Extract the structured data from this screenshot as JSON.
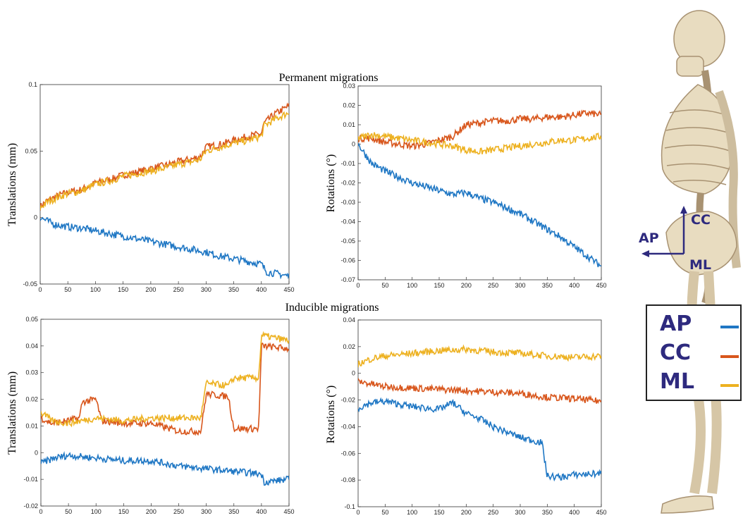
{
  "section_titles": {
    "top": "Permanent migrations",
    "bottom": "Inducible migrations"
  },
  "colors": {
    "AP": "#1f77c4",
    "CC": "#d8561c",
    "ML": "#edb120",
    "legend_text": "#2e2a7e"
  },
  "legend": [
    {
      "label": "AP",
      "color": "#1f77c4"
    },
    {
      "label": "CC",
      "color": "#d8561c"
    },
    {
      "label": "ML",
      "color": "#edb120"
    }
  ],
  "anatomy_axes": {
    "ap": "AP",
    "cc": "CC",
    "ml": "ML"
  },
  "chart_data": [
    {
      "type": "line",
      "ylabel": "Translations (mm)",
      "xlim": [
        0,
        450
      ],
      "ylim": [
        -0.05,
        0.1
      ],
      "xticks": [
        "0",
        "50",
        "100",
        "150",
        "200",
        "250",
        "300",
        "350",
        "400",
        "450"
      ],
      "yticks": [
        "-0.05",
        "0",
        "0.05",
        "0.1"
      ],
      "series": [
        {
          "name": "CC",
          "x": [
            0,
            10,
            30,
            50,
            75,
            100,
            130,
            150,
            175,
            200,
            225,
            250,
            275,
            290,
            300,
            325,
            350,
            375,
            400,
            405,
            425,
            450
          ],
          "y": [
            0.008,
            0.012,
            0.016,
            0.019,
            0.021,
            0.026,
            0.029,
            0.032,
            0.034,
            0.037,
            0.039,
            0.042,
            0.044,
            0.046,
            0.053,
            0.055,
            0.058,
            0.061,
            0.063,
            0.071,
            0.078,
            0.084
          ]
        },
        {
          "name": "ML",
          "x": [
            0,
            10,
            30,
            50,
            75,
            100,
            130,
            150,
            175,
            200,
            225,
            250,
            275,
            290,
            300,
            325,
            350,
            375,
            400,
            405,
            425,
            450
          ],
          "y": [
            0.007,
            0.011,
            0.015,
            0.018,
            0.02,
            0.025,
            0.028,
            0.031,
            0.033,
            0.035,
            0.037,
            0.04,
            0.042,
            0.044,
            0.05,
            0.053,
            0.056,
            0.058,
            0.061,
            0.069,
            0.074,
            0.079
          ]
        },
        {
          "name": "AP",
          "x": [
            0,
            25,
            50,
            75,
            100,
            125,
            150,
            175,
            200,
            225,
            250,
            275,
            300,
            325,
            350,
            375,
            400,
            410,
            425,
            450
          ],
          "y": [
            0,
            -0.005,
            -0.007,
            -0.008,
            -0.01,
            -0.012,
            -0.014,
            -0.016,
            -0.018,
            -0.02,
            -0.022,
            -0.024,
            -0.026,
            -0.029,
            -0.031,
            -0.033,
            -0.035,
            -0.041,
            -0.042,
            -0.044
          ]
        }
      ]
    },
    {
      "type": "line",
      "ylabel": "Rotations (°)",
      "xlim": [
        0,
        450
      ],
      "ylim": [
        -0.07,
        0.03
      ],
      "xticks": [
        "0",
        "50",
        "100",
        "150",
        "200",
        "250",
        "300",
        "350",
        "400",
        "450"
      ],
      "yticks": [
        "-0.07",
        "-0.06",
        "-0.05",
        "-0.04",
        "-0.03",
        "-0.02",
        "-0.01",
        "0",
        "0.01",
        "0.02",
        "0.03"
      ],
      "series": [
        {
          "name": "CC",
          "x": [
            0,
            25,
            50,
            75,
            100,
            125,
            150,
            175,
            200,
            225,
            250,
            275,
            300,
            325,
            350,
            375,
            400,
            425,
            450
          ],
          "y": [
            0.003,
            0.003,
            0.001,
            0.0,
            -0.001,
            0.0,
            0.002,
            0.004,
            0.01,
            0.011,
            0.012,
            0.012,
            0.013,
            0.013,
            0.014,
            0.014,
            0.015,
            0.016,
            0.015
          ]
        },
        {
          "name": "ML",
          "x": [
            0,
            25,
            50,
            75,
            100,
            125,
            150,
            175,
            200,
            225,
            250,
            275,
            300,
            325,
            350,
            375,
            400,
            425,
            450
          ],
          "y": [
            0.003,
            0.005,
            0.004,
            0.003,
            0.002,
            0.001,
            0.0,
            -0.001,
            -0.003,
            -0.004,
            -0.003,
            -0.002,
            -0.001,
            0.0,
            0.001,
            0.002,
            0.002,
            0.003,
            0.004
          ]
        },
        {
          "name": "AP",
          "x": [
            0,
            25,
            50,
            75,
            100,
            125,
            150,
            175,
            200,
            225,
            250,
            275,
            300,
            325,
            350,
            375,
            400,
            425,
            450
          ],
          "y": [
            0,
            -0.01,
            -0.014,
            -0.017,
            -0.02,
            -0.022,
            -0.024,
            -0.026,
            -0.025,
            -0.028,
            -0.03,
            -0.033,
            -0.036,
            -0.04,
            -0.044,
            -0.048,
            -0.053,
            -0.058,
            -0.063
          ]
        }
      ]
    },
    {
      "type": "line",
      "ylabel": "Translations (mm)",
      "xlim": [
        0,
        450
      ],
      "ylim": [
        -0.02,
        0.05
      ],
      "xticks": [
        "0",
        "50",
        "100",
        "150",
        "200",
        "250",
        "300",
        "350",
        "400",
        "450"
      ],
      "yticks": [
        "-0.02",
        "-0.01",
        "0",
        "0.01",
        "0.02",
        "0.03",
        "0.04",
        "0.05"
      ],
      "series": [
        {
          "name": "CC",
          "x": [
            0,
            20,
            50,
            70,
            75,
            100,
            110,
            150,
            200,
            250,
            290,
            300,
            340,
            350,
            395,
            400,
            450
          ],
          "y": [
            0.013,
            0.011,
            0.012,
            0.013,
            0.019,
            0.02,
            0.012,
            0.011,
            0.011,
            0.008,
            0.008,
            0.022,
            0.021,
            0.009,
            0.009,
            0.04,
            0.039
          ]
        },
        {
          "name": "ML",
          "x": [
            0,
            20,
            50,
            100,
            150,
            200,
            250,
            290,
            300,
            340,
            350,
            395,
            400,
            450
          ],
          "y": [
            0.015,
            0.012,
            0.011,
            0.013,
            0.012,
            0.013,
            0.013,
            0.013,
            0.026,
            0.025,
            0.028,
            0.028,
            0.044,
            0.042
          ]
        },
        {
          "name": "AP",
          "x": [
            0,
            25,
            50,
            100,
            150,
            200,
            250,
            300,
            350,
            400,
            405,
            450
          ],
          "y": [
            -0.004,
            -0.002,
            -0.001,
            -0.002,
            -0.003,
            -0.003,
            -0.005,
            -0.006,
            -0.007,
            -0.008,
            -0.011,
            -0.01
          ]
        }
      ]
    },
    {
      "type": "line",
      "ylabel": "Rotations (°)",
      "xlim": [
        0,
        450
      ],
      "ylim": [
        -0.1,
        0.04
      ],
      "xticks": [
        "0",
        "50",
        "100",
        "150",
        "200",
        "250",
        "300",
        "350",
        "400",
        "450"
      ],
      "yticks": [
        "-0.1",
        "-0.08",
        "-0.06",
        "-0.04",
        "-0.02",
        "0",
        "0.02",
        "0.04"
      ],
      "series": [
        {
          "name": "ML",
          "x": [
            0,
            25,
            50,
            100,
            150,
            200,
            250,
            300,
            350,
            400,
            450
          ],
          "y": [
            0.007,
            0.011,
            0.013,
            0.015,
            0.017,
            0.018,
            0.016,
            0.015,
            0.013,
            0.012,
            0.013
          ]
        },
        {
          "name": "CC",
          "x": [
            0,
            25,
            50,
            100,
            150,
            200,
            250,
            300,
            350,
            400,
            450
          ],
          "y": [
            -0.006,
            -0.008,
            -0.01,
            -0.011,
            -0.012,
            -0.013,
            -0.014,
            -0.015,
            -0.018,
            -0.019,
            -0.021
          ]
        },
        {
          "name": "AP",
          "x": [
            0,
            25,
            50,
            100,
            150,
            175,
            200,
            225,
            250,
            300,
            340,
            350,
            375,
            400,
            450
          ],
          "y": [
            -0.026,
            -0.022,
            -0.021,
            -0.025,
            -0.027,
            -0.022,
            -0.03,
            -0.034,
            -0.04,
            -0.048,
            -0.052,
            -0.077,
            -0.078,
            -0.076,
            -0.075
          ]
        }
      ]
    }
  ]
}
